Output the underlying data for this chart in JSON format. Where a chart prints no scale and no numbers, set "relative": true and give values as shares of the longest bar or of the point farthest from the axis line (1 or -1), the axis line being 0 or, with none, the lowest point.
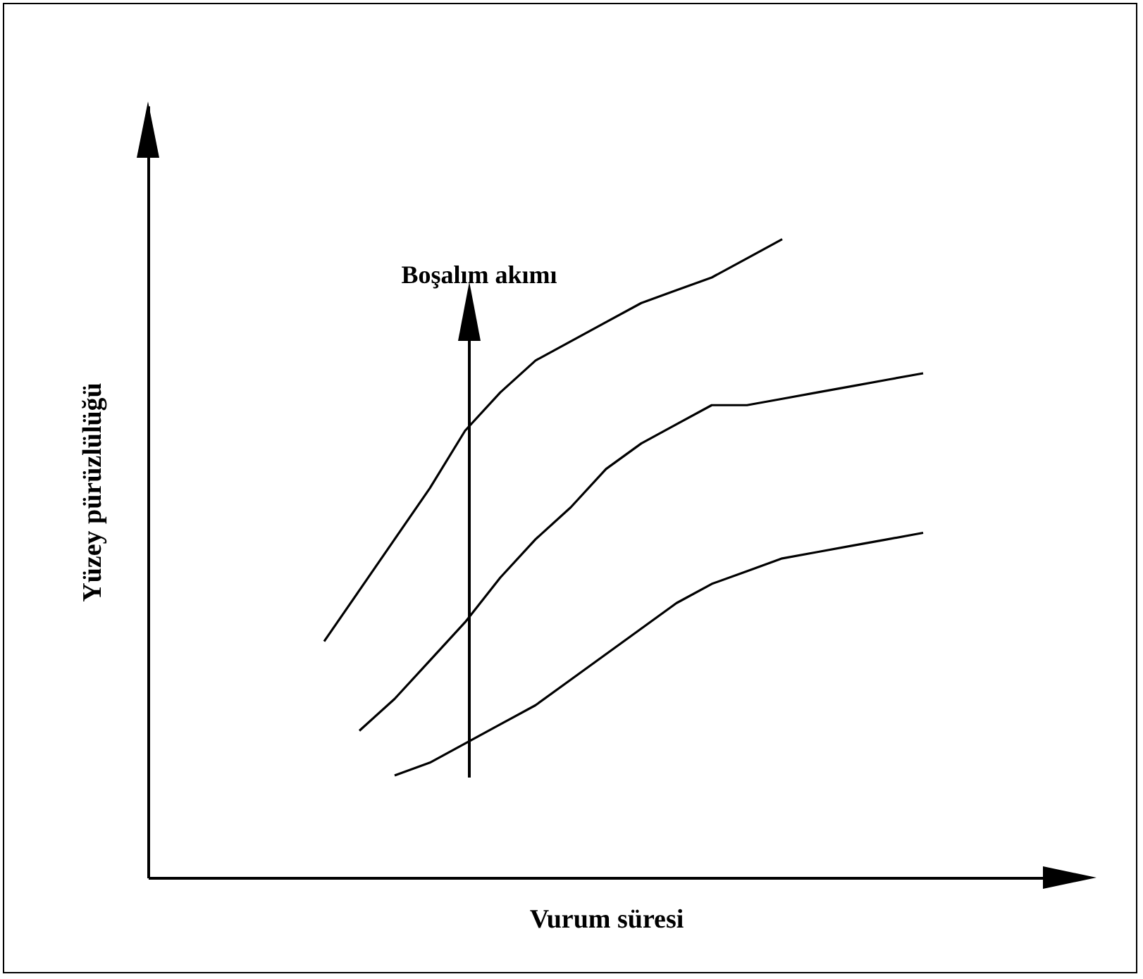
{
  "chart_data": {
    "type": "line",
    "relative": true,
    "xlabel": "Vurum süresi",
    "ylabel": "Yüzey pürüzlülüğü",
    "annotations": [
      "Boşalım akımı"
    ],
    "legend": false,
    "marker": "none",
    "grid": false,
    "categories": [
      null,
      null,
      null,
      null,
      null,
      null,
      null,
      null,
      null,
      null,
      null,
      null,
      null,
      null,
      null,
      null,
      null,
      null,
      null,
      null,
      null,
      null,
      null,
      null,
      null,
      null,
      null
    ],
    "series": [
      {
        "color": "#000000",
        "values": [
          null,
          null,
          null,
          null,
          null,
          0.37,
          0.45,
          0.53,
          0.61,
          0.7,
          0.76,
          0.81,
          0.84,
          0.87,
          0.9,
          0.92,
          0.94,
          0.97,
          1,
          null,
          null,
          null,
          null,
          null,
          null,
          null,
          null
        ]
      },
      {
        "color": "#000000",
        "values": [
          null,
          null,
          null,
          null,
          null,
          null,
          0.23,
          0.28,
          0.34,
          0.4,
          0.47,
          0.53,
          0.58,
          0.64,
          0.68,
          0.71,
          0.74,
          0.74,
          0.75,
          0.76,
          0.77,
          0.78,
          0.79,
          null,
          null,
          null,
          null
        ]
      },
      {
        "color": "#000000",
        "values": [
          null,
          null,
          null,
          null,
          null,
          null,
          null,
          0.16,
          0.18,
          0.21,
          0.24,
          0.27,
          0.31,
          0.35,
          0.39,
          0.43,
          0.46,
          0.48,
          0.5,
          0.51,
          0.52,
          0.53,
          0.54,
          null,
          null,
          null,
          null
        ]
      }
    ]
  }
}
